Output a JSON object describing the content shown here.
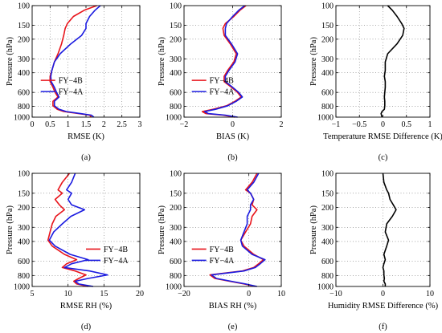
{
  "chart_data": [
    {
      "type": "line",
      "panel_label": "(a)",
      "xlabel": "RMSE  (K)",
      "ylabel": "Pressure  (hPa)",
      "xlim": [
        0,
        3
      ],
      "ylim": [
        100,
        1000
      ],
      "y_scale": "log",
      "y_reversed": true,
      "xticks": [
        "0",
        "0.5",
        "1",
        "1.5",
        "2",
        "2.5",
        "3"
      ],
      "yticks": [
        "100",
        "150",
        "200",
        "300",
        "400",
        "600",
        "800",
        "1000"
      ],
      "grid": "dotted",
      "legend_position": "center-left",
      "series": [
        {
          "name": "FY−4B",
          "color": "#e8141b",
          "x": [
            1.8,
            1.45,
            1.15,
            0.98,
            0.92,
            0.88,
            0.82,
            0.72,
            0.62,
            0.55,
            0.5,
            0.5,
            0.58,
            0.64,
            0.72,
            0.58,
            0.58,
            0.7,
            0.88,
            1.3,
            1.6,
            1.65
          ],
          "p": [
            100,
            110,
            125,
            145,
            160,
            185,
            220,
            270,
            320,
            380,
            430,
            480,
            540,
            600,
            660,
            720,
            790,
            850,
            890,
            930,
            960,
            1000
          ]
        },
        {
          "name": "FY−4A",
          "color": "#1b1be0",
          "x": [
            1.9,
            1.75,
            1.6,
            1.5,
            1.5,
            1.38,
            1.08,
            0.78,
            0.62,
            0.55,
            0.52,
            0.53,
            0.62,
            0.68,
            0.75,
            0.62,
            0.62,
            0.75,
            0.95,
            1.35,
            1.65,
            1.72
          ],
          "p": [
            100,
            110,
            125,
            145,
            160,
            185,
            220,
            270,
            320,
            380,
            430,
            480,
            540,
            600,
            660,
            720,
            790,
            850,
            890,
            930,
            960,
            1000
          ]
        }
      ]
    },
    {
      "type": "line",
      "panel_label": "(b)",
      "xlabel": "BIAS  (K)",
      "ylabel": "Pressure  (hPa)",
      "xlim": [
        -2,
        2
      ],
      "ylim": [
        100,
        1000
      ],
      "y_scale": "log",
      "y_reversed": true,
      "xticks": [
        "−2",
        "0",
        "2"
      ],
      "yticks": [
        "100",
        "150",
        "200",
        "300",
        "400",
        "600",
        "800",
        "1000"
      ],
      "grid": "dotted",
      "legend_position": "center-left",
      "series": [
        {
          "name": "FY−4B",
          "color": "#e8141b",
          "x": [
            0.55,
            0.3,
            0.05,
            -0.3,
            -0.4,
            -0.35,
            -0.1,
            0.15,
            0.05,
            -0.2,
            -0.35,
            -0.35,
            -0.05,
            0.2,
            0.35,
            0.1,
            -0.25,
            -0.8,
            -1.25,
            -1.1,
            -0.4,
            0.1
          ],
          "p": [
            100,
            110,
            125,
            145,
            160,
            185,
            220,
            270,
            320,
            380,
            430,
            480,
            540,
            600,
            660,
            720,
            790,
            850,
            890,
            930,
            960,
            1000
          ]
        },
        {
          "name": "FY−4A",
          "color": "#1b1be0",
          "x": [
            0.5,
            0.25,
            0.0,
            -0.25,
            -0.3,
            -0.3,
            -0.05,
            0.2,
            0.1,
            -0.15,
            -0.3,
            -0.3,
            0.0,
            0.25,
            0.4,
            0.15,
            -0.2,
            -0.7,
            -1.15,
            -1.0,
            -0.3,
            0.2
          ],
          "p": [
            100,
            110,
            125,
            145,
            160,
            185,
            220,
            270,
            320,
            380,
            430,
            480,
            540,
            600,
            660,
            720,
            790,
            850,
            890,
            930,
            960,
            1000
          ]
        }
      ]
    },
    {
      "type": "line",
      "panel_label": "(c)",
      "xlabel": "Temperature RMSE Difference  (K)",
      "ylabel": "Pressure  (hPa)",
      "xlim": [
        -1,
        1
      ],
      "ylim": [
        100,
        1000
      ],
      "y_scale": "log",
      "y_reversed": true,
      "xticks": [
        "−1",
        "−0.5",
        "0",
        "0.5",
        "1"
      ],
      "yticks": [
        "100",
        "150",
        "200",
        "300",
        "400",
        "600",
        "800",
        "1000"
      ],
      "grid": "dotted",
      "series": [
        {
          "color": "#000000",
          "x": [
            0.1,
            0.2,
            0.3,
            0.4,
            0.45,
            0.42,
            0.3,
            0.1,
            0.05,
            0.05,
            0.03,
            0.05,
            0.05,
            0.04,
            0.03,
            0.04,
            0.04,
            0.03,
            -0.02,
            -0.04,
            -0.03,
            -0.02
          ],
          "p": [
            100,
            110,
            125,
            145,
            160,
            185,
            220,
            270,
            320,
            380,
            430,
            480,
            540,
            600,
            660,
            720,
            790,
            850,
            890,
            930,
            960,
            1000
          ]
        }
      ]
    },
    {
      "type": "line",
      "panel_label": "(d)",
      "xlabel": "RMSE RH  (%)",
      "ylabel": "Pressure  (hPa)",
      "xlim": [
        5,
        20
      ],
      "ylim": [
        100,
        1000
      ],
      "y_scale": "log",
      "y_reversed": true,
      "xticks": [
        "5",
        "10",
        "15",
        "20"
      ],
      "yticks": [
        "100",
        "150",
        "200",
        "300",
        "400",
        "600",
        "800",
        "1000"
      ],
      "grid": "dotted",
      "legend_position": "center-right",
      "series": [
        {
          "name": "FY−4B",
          "color": "#e8141b",
          "x": [
            10.2,
            9.2,
            8.6,
            9.2,
            8.2,
            8.8,
            9.5,
            8.3,
            7.8,
            7.5,
            7.2,
            7.8,
            9.5,
            11.2,
            9.8,
            9.2,
            11.0,
            12.5,
            11.5,
            10.8,
            11.2,
            12.8
          ],
          "p": [
            100,
            120,
            140,
            150,
            170,
            190,
            210,
            240,
            280,
            330,
            390,
            440,
            520,
            580,
            630,
            680,
            730,
            790,
            850,
            900,
            950,
            1000
          ]
        },
        {
          "name": "FY−4A",
          "color": "#1b1be0",
          "x": [
            11.0,
            10.5,
            9.8,
            10.5,
            10.0,
            10.5,
            12.3,
            10.4,
            9.2,
            8.0,
            7.4,
            8.2,
            10.3,
            12.8,
            10.5,
            9.5,
            13.0,
            15.5,
            12.8,
            11.0,
            11.5,
            13.5
          ],
          "p": [
            100,
            120,
            140,
            150,
            170,
            190,
            210,
            240,
            280,
            330,
            390,
            440,
            520,
            580,
            630,
            680,
            730,
            790,
            850,
            900,
            950,
            1000
          ]
        }
      ]
    },
    {
      "type": "line",
      "panel_label": "(e)",
      "xlabel": "BIAS RH  (%)",
      "ylabel": "Pressure  (hPa)",
      "xlim": [
        -20,
        10
      ],
      "ylim": [
        100,
        1000
      ],
      "y_scale": "log",
      "y_reversed": true,
      "xticks": [
        "−20",
        "0",
        "10"
      ],
      "yticks": [
        "100",
        "150",
        "200",
        "300",
        "400",
        "600",
        "800",
        "1000"
      ],
      "grid": "dotted",
      "legend_position": "center-left",
      "series": [
        {
          "name": "FY−4B",
          "color": "#e8141b",
          "x": [
            2.5,
            1.0,
            -1.0,
            0.5,
            1.5,
            1.0,
            2.5,
            1.0,
            0.5,
            -1.0,
            -2.5,
            -1.5,
            1.5,
            4.5,
            3.0,
            1.5,
            -2.0,
            -12.0,
            -10.5,
            -6.0,
            -1.5,
            2.0
          ],
          "p": [
            100,
            120,
            140,
            150,
            170,
            190,
            210,
            240,
            280,
            330,
            390,
            440,
            520,
            580,
            630,
            680,
            730,
            790,
            850,
            900,
            950,
            1000
          ]
        },
        {
          "name": "FY−4A",
          "color": "#1b1be0",
          "x": [
            3.0,
            1.5,
            -0.5,
            0.5,
            1.5,
            0.5,
            0.5,
            -0.5,
            -0.5,
            -1.5,
            -2.5,
            -2.0,
            1.0,
            5.0,
            3.5,
            2.0,
            -1.5,
            -11.5,
            -10.0,
            -5.5,
            -1.0,
            2.5
          ],
          "p": [
            100,
            120,
            140,
            150,
            170,
            190,
            210,
            240,
            280,
            330,
            390,
            440,
            520,
            580,
            630,
            680,
            730,
            790,
            850,
            900,
            950,
            1000
          ]
        }
      ]
    },
    {
      "type": "line",
      "panel_label": "(f)",
      "xlabel": "Humidity RMSE Difference  (%)",
      "ylabel": "Pressure  (hPa)",
      "xlim": [
        -10,
        10
      ],
      "ylim": [
        100,
        1000
      ],
      "y_scale": "log",
      "y_reversed": true,
      "xticks": [
        "−10",
        "0",
        "10"
      ],
      "yticks": [
        "100",
        "150",
        "200",
        "300",
        "400",
        "600",
        "800",
        "1000"
      ],
      "grid": "dotted",
      "series": [
        {
          "color": "#000000",
          "x": [
            0.0,
            0.2,
            0.8,
            1.2,
            1.5,
            2.2,
            2.8,
            2.0,
            0.8,
            0.5,
            1.2,
            0.8,
            0.2,
            0.5,
            0.2,
            0.0,
            0.2,
            0.2,
            0.3,
            0.2,
            0.5,
            0.5
          ],
          "p": [
            100,
            120,
            140,
            150,
            170,
            190,
            210,
            240,
            280,
            330,
            390,
            440,
            520,
            580,
            630,
            680,
            730,
            790,
            850,
            900,
            950,
            1000
          ]
        }
      ]
    }
  ]
}
